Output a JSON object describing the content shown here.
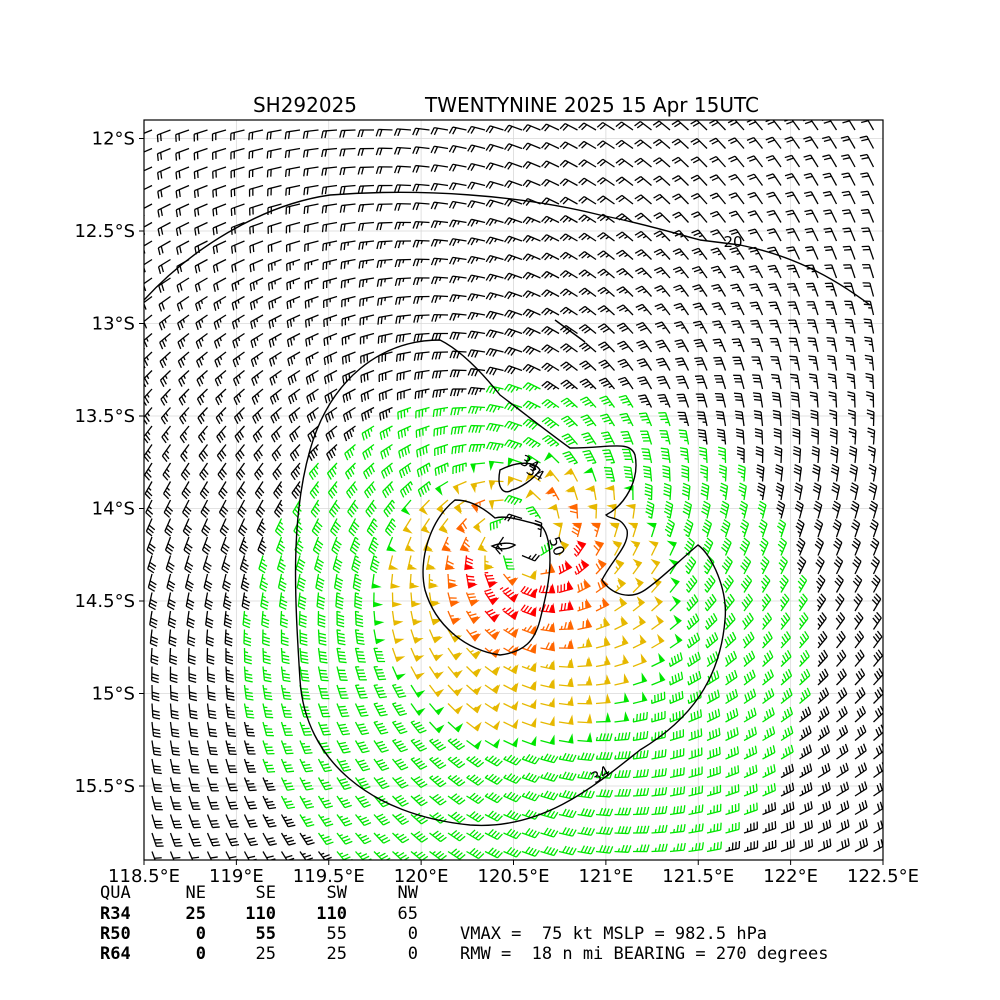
{
  "chart_data": {
    "type": "wind-barb-map",
    "title_id": "SH292025",
    "title_main": "TWENTYNINE 2025 15 Apr 15UTC",
    "xlim": [
      118.5,
      122.5
    ],
    "ylim": [
      -15.9,
      -11.9
    ],
    "x_ticks": [
      118.5,
      119,
      119.5,
      120,
      120.5,
      121,
      121.5,
      122,
      122.5
    ],
    "x_tick_labels": [
      "118.5°E",
      "119°E",
      "119.5°E",
      "120°E",
      "120.5°E",
      "121°E",
      "121.5°E",
      "122°E",
      "122.5°E"
    ],
    "y_ticks": [
      -12,
      -12.5,
      -13,
      -13.5,
      -14,
      -14.5,
      -15,
      -15.5
    ],
    "y_tick_labels": [
      "12°S",
      "12.5°S",
      "13°S",
      "13.5°S",
      "14°S",
      "14.5°S",
      "15°S",
      "15.5°S"
    ],
    "grid": true,
    "center": {
      "lon": 120.55,
      "lat": -14.18
    },
    "barb_colors": {
      "lt34": "#000000",
      "ge34": "#00e600",
      "ge50": "#e6b800",
      "ge64": "#ff6600",
      "ge80": "#ff0000"
    },
    "contour_labels": [
      "20",
      "34",
      "34",
      "50",
      "34"
    ],
    "wind_radii": {
      "header": [
        "QUA",
        "NE",
        "SE",
        "SW",
        "NW"
      ],
      "rows": [
        {
          "label": "R34",
          "values": [
            25,
            110,
            110,
            65
          ]
        },
        {
          "label": "R50",
          "values": [
            0,
            55,
            55,
            0
          ]
        },
        {
          "label": "R64",
          "values": [
            0,
            25,
            25,
            0
          ]
        }
      ]
    },
    "summary_line1": "VMAX =  75 kt MSLP = 982.5 hPa",
    "summary_line2": "RMW =  18 n mi BEARING = 270 degrees"
  }
}
